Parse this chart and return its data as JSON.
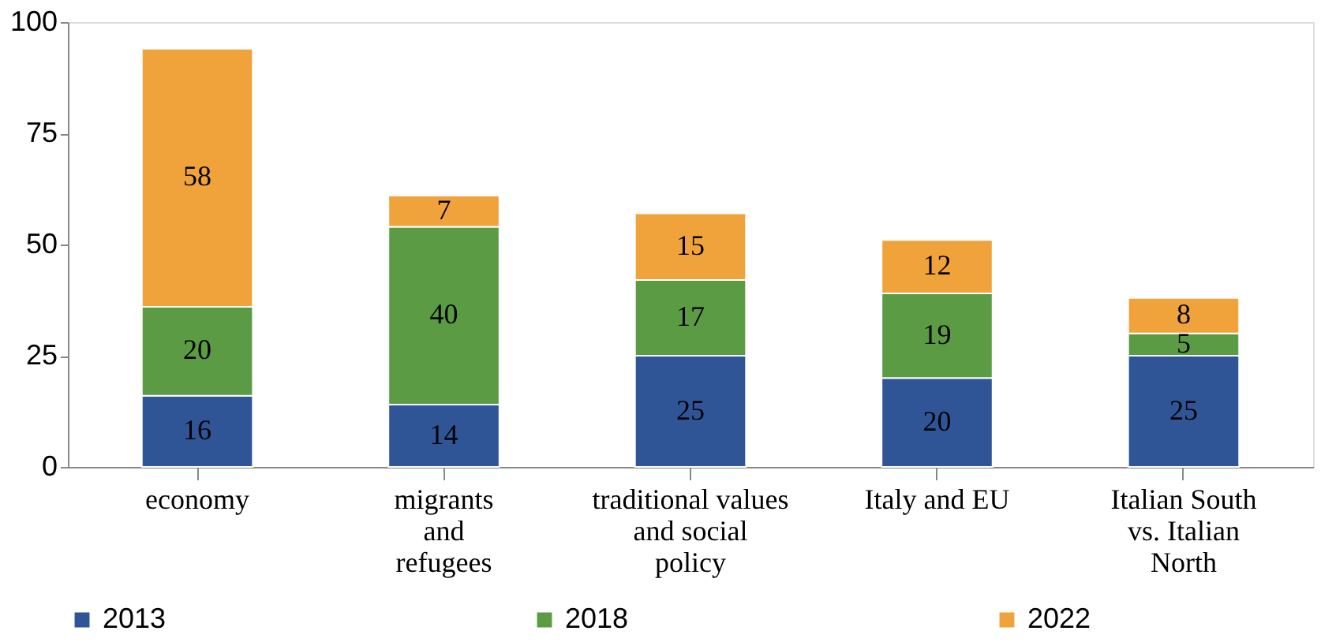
{
  "chart_data": {
    "type": "bar",
    "stacked": true,
    "categories": [
      "economy",
      "migrants\nand\nrefugees",
      "traditional values\nand social\npolicy",
      "Italy and EU",
      "Italian South\nvs. Italian\nNorth"
    ],
    "series": [
      {
        "name": "2013",
        "color": "#2f5597",
        "values": [
          16,
          14,
          25,
          20,
          25
        ]
      },
      {
        "name": "2018",
        "color": "#5b9b44",
        "values": [
          20,
          40,
          17,
          19,
          5
        ]
      },
      {
        "name": "2022",
        "color": "#f0a33a",
        "values": [
          58,
          7,
          15,
          12,
          8
        ]
      }
    ],
    "ylim": [
      0,
      100
    ],
    "yticks": [
      0,
      25,
      50,
      75,
      100
    ],
    "grid": false,
    "legend": "bottom",
    "data_labels": true
  }
}
